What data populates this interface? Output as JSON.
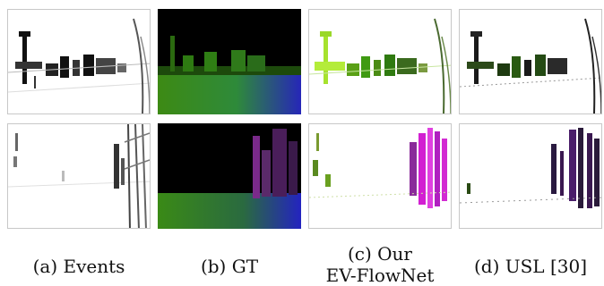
{
  "figure": {
    "columns": [
      {
        "id": "events",
        "caption_lines": [
          "(a) Events"
        ],
        "style": "grayscale-on-white"
      },
      {
        "id": "gt",
        "caption_lines": [
          "(b) GT"
        ],
        "style": "color-on-black"
      },
      {
        "id": "ours",
        "caption_lines": [
          "(c) Our",
          "EV-FlowNet"
        ],
        "style": "color-on-white"
      },
      {
        "id": "usl",
        "caption_lines": [
          "(d) USL [30]"
        ],
        "style": "color-on-white"
      }
    ],
    "rows": [
      "scene-1",
      "scene-2"
    ],
    "colors": {
      "gt_background": "#000000",
      "flow_green": "#3f9a12",
      "flow_lime": "#a6e22e",
      "flow_magenta": "#d21fd2",
      "flow_blue": "#2323c8",
      "flow_dark_purple": "#3a1850",
      "event_black": "#111111"
    }
  }
}
